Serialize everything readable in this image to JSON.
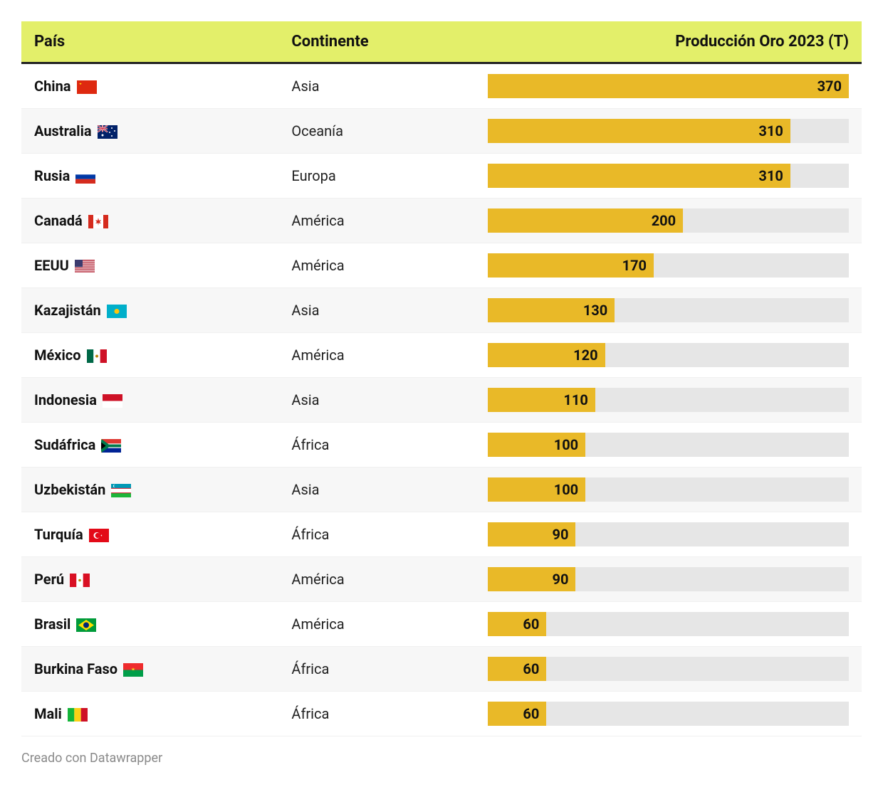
{
  "colors": {
    "header_bg": "#e3ef6a",
    "bar_fill": "#e9b928",
    "bar_track": "#e6e6e6",
    "row_alt": "#f7f7f7",
    "row_border": "#f0f0f0",
    "header_border": "#222222",
    "text": "#111111",
    "footer_text": "#8a8a8a",
    "background": "#ffffff"
  },
  "typography": {
    "header_fontsize": 22,
    "body_fontsize": 20,
    "footer_fontsize": 18,
    "font_family": "-apple-system, Segoe UI, Roboto, Arial"
  },
  "bar_chart": {
    "max_value": 370,
    "label_inset": 10
  },
  "columns": {
    "country": "País",
    "continent": "Continente",
    "production": "Producción Oro 2023 (T)"
  },
  "rows": [
    {
      "country": "China",
      "flag": "cn",
      "continent": "Asia",
      "value": 370
    },
    {
      "country": "Australia",
      "flag": "au",
      "continent": "Oceanía",
      "value": 310
    },
    {
      "country": "Rusia",
      "flag": "ru",
      "continent": "Europa",
      "value": 310
    },
    {
      "country": "Canadá",
      "flag": "ca",
      "continent": "América",
      "value": 200
    },
    {
      "country": "EEUU",
      "flag": "us",
      "continent": "América",
      "value": 170
    },
    {
      "country": "Kazajistán",
      "flag": "kz",
      "continent": "Asia",
      "value": 130
    },
    {
      "country": "México",
      "flag": "mx",
      "continent": "América",
      "value": 120
    },
    {
      "country": "Indonesia",
      "flag": "id",
      "continent": "Asia",
      "value": 110
    },
    {
      "country": "Sudáfrica",
      "flag": "za",
      "continent": "África",
      "value": 100
    },
    {
      "country": "Uzbekistán",
      "flag": "uz",
      "continent": "Asia",
      "value": 100
    },
    {
      "country": "Turquía",
      "flag": "tr",
      "continent": "África",
      "value": 90
    },
    {
      "country": "Perú",
      "flag": "pe",
      "continent": "América",
      "value": 90
    },
    {
      "country": "Brasil",
      "flag": "br",
      "continent": "América",
      "value": 60
    },
    {
      "country": "Burkina Faso",
      "flag": "bf",
      "continent": "África",
      "value": 60
    },
    {
      "country": "Mali",
      "flag": "ml",
      "continent": "África",
      "value": 60
    }
  ],
  "footer": "Creado con Datawrapper"
}
